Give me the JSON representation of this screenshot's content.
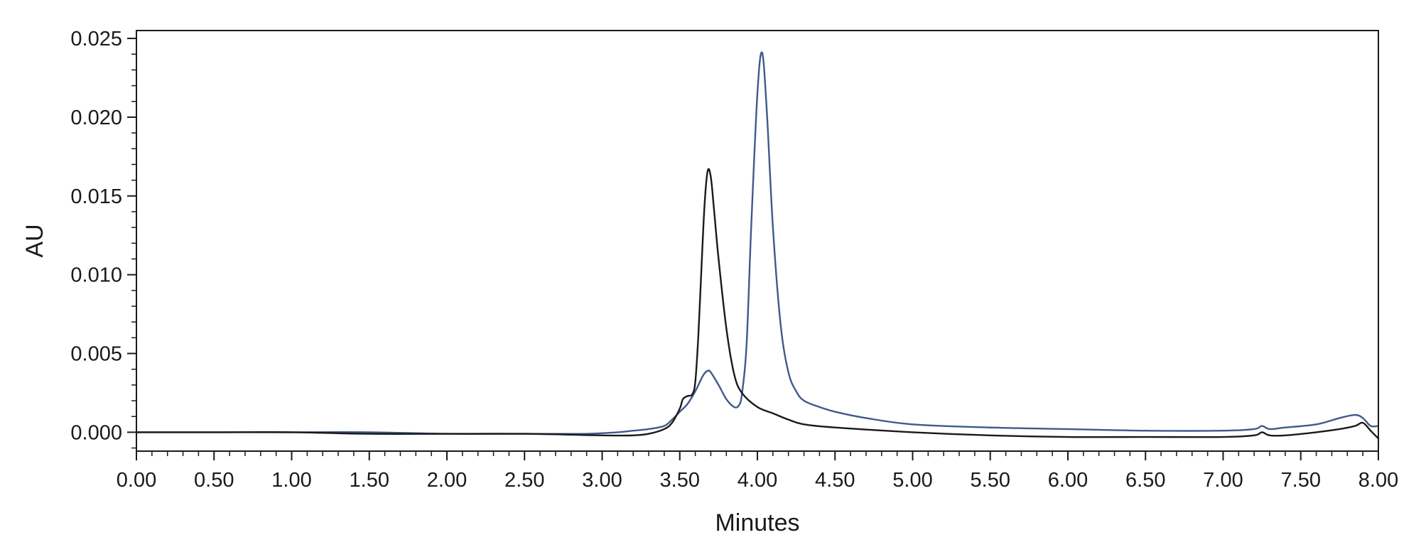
{
  "chart_data": {
    "type": "line",
    "title": "",
    "xlabel": "Minutes",
    "ylabel": "AU",
    "xlim": [
      0,
      8
    ],
    "ylim": [
      -0.0012,
      0.0255
    ],
    "x_ticks": [
      0,
      0.5,
      1,
      1.5,
      2,
      2.5,
      3,
      3.5,
      4,
      4.5,
      5,
      5.5,
      6,
      6.5,
      7,
      7.5,
      8
    ],
    "x_tick_labels": [
      "0.00",
      "0.50",
      "1.00",
      "1.50",
      "2.00",
      "2.50",
      "3.00",
      "3.50",
      "4.00",
      "4.50",
      "5.00",
      "5.50",
      "6.00",
      "6.50",
      "7.00",
      "7.50",
      "8.00"
    ],
    "x_minor_step": 0.1,
    "y_ticks": [
      0,
      0.005,
      0.01,
      0.015,
      0.02,
      0.025
    ],
    "y_tick_labels": [
      "0.000",
      "0.005",
      "0.010",
      "0.015",
      "0.020",
      "0.025"
    ],
    "y_minor_step": 0.001,
    "grid": false,
    "legend": false,
    "series": [
      {
        "color": "#3f5a8a",
        "x": [
          0,
          0.5,
          1.0,
          1.5,
          2.0,
          2.5,
          2.9,
          3.1,
          3.2,
          3.3,
          3.4,
          3.45,
          3.5,
          3.55,
          3.6,
          3.65,
          3.68,
          3.7,
          3.75,
          3.8,
          3.85,
          3.88,
          3.9,
          3.93,
          3.96,
          4.0,
          4.03,
          4.06,
          4.1,
          4.15,
          4.2,
          4.25,
          4.3,
          4.4,
          4.5,
          4.7,
          5.0,
          5.5,
          6.0,
          6.5,
          7.0,
          7.2,
          7.25,
          7.3,
          7.4,
          7.6,
          7.75,
          7.85,
          7.9,
          7.95,
          8.0
        ],
        "y": [
          0,
          0,
          0,
          0,
          -0.0001,
          -0.0001,
          -0.0001,
          0,
          0.0001,
          0.0002,
          0.0004,
          0.0008,
          0.0013,
          0.0018,
          0.0026,
          0.0036,
          0.0039,
          0.0038,
          0.003,
          0.0021,
          0.0016,
          0.0017,
          0.0024,
          0.0055,
          0.013,
          0.0215,
          0.0241,
          0.0205,
          0.013,
          0.0068,
          0.0038,
          0.0026,
          0.002,
          0.0016,
          0.0013,
          0.0009,
          0.0005,
          0.0003,
          0.0002,
          0.0001,
          0.0001,
          0.0002,
          0.0004,
          0.0002,
          0.0003,
          0.0005,
          0.0009,
          0.0011,
          0.0009,
          0.0004,
          0.0004
        ]
      },
      {
        "color": "#1a1a1a",
        "x": [
          0,
          0.5,
          1.0,
          1.5,
          2.0,
          2.5,
          3.0,
          3.2,
          3.3,
          3.4,
          3.45,
          3.5,
          3.52,
          3.55,
          3.58,
          3.6,
          3.62,
          3.64,
          3.66,
          3.68,
          3.7,
          3.72,
          3.75,
          3.8,
          3.85,
          3.9,
          4.0,
          4.1,
          4.2,
          4.3,
          4.5,
          5.0,
          5.5,
          6.0,
          6.5,
          7.0,
          7.2,
          7.25,
          7.3,
          7.4,
          7.6,
          7.75,
          7.85,
          7.9,
          7.95,
          8.0
        ],
        "y": [
          0,
          0,
          0,
          -0.0001,
          -0.0001,
          -0.0001,
          -0.0002,
          -0.0002,
          -0.0001,
          0.0002,
          0.0006,
          0.0015,
          0.0021,
          0.0023,
          0.0024,
          0.0032,
          0.0062,
          0.0105,
          0.0145,
          0.0166,
          0.0162,
          0.0142,
          0.011,
          0.0066,
          0.0037,
          0.0025,
          0.0016,
          0.0012,
          0.0008,
          0.0005,
          0.0003,
          0,
          -0.0002,
          -0.0003,
          -0.0003,
          -0.0003,
          -0.0002,
          0,
          -0.0002,
          -0.0002,
          0,
          0.0002,
          0.0004,
          0.0006,
          0.0001,
          -0.0004
        ]
      }
    ]
  }
}
